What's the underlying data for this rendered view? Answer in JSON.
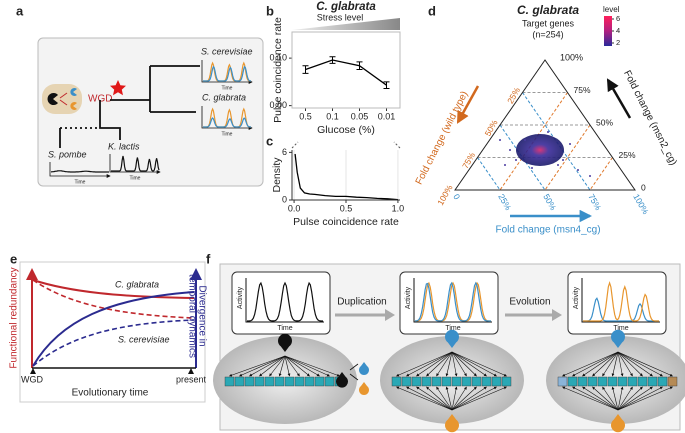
{
  "panel_labels": [
    "a",
    "b",
    "c",
    "d",
    "e",
    "f"
  ],
  "tree": {
    "wgd": "WGD",
    "species": [
      "S. cerevisiae",
      "C. glabrata",
      "K. lactis",
      "S. pombe"
    ],
    "time_label": "Time"
  },
  "chart_data": [
    {
      "type": "line",
      "title": "C. glabrata",
      "subtitle": "Stress level",
      "categories": [
        "0.5",
        "0.1",
        "0.05",
        "0.01"
      ],
      "values": [
        0.076,
        0.096,
        0.084,
        0.043
      ],
      "errors": [
        0.008,
        0.007,
        0.008,
        0.007
      ],
      "color": "#000000",
      "ylim": [
        -0.005,
        0.155
      ],
      "yticks": [
        {
          "value": 0,
          "label": "0.00"
        },
        {
          "value": 0.1,
          "label": "0.10"
        }
      ],
      "xlabel": "Glucose (%)",
      "ylabel": "Pulse coincidence rate"
    },
    {
      "type": "line",
      "x": [
        0.01,
        0.03,
        0.06,
        0.1,
        0.15,
        0.2,
        0.3,
        0.4,
        0.5,
        0.6,
        0.7,
        0.8,
        0.9,
        1.0
      ],
      "values": [
        5.8,
        3.5,
        1.5,
        0.9,
        0.75,
        0.7,
        0.55,
        0.45,
        0.45,
        0.35,
        0.3,
        0.2,
        0.15,
        0.05
      ],
      "color": "#000000",
      "xlim": [
        -0.02,
        1.02
      ],
      "xticks": [
        {
          "value": 0,
          "label": "0.0"
        },
        {
          "value": 0.5,
          "label": "0.5"
        },
        {
          "value": 1,
          "label": "1.0"
        }
      ],
      "ylim": [
        0,
        6.3
      ],
      "yticks": [
        0,
        6
      ],
      "grid": true,
      "xlabel": "Pulse coincidence rate",
      "ylabel": "Density"
    }
  ],
  "ternary": {
    "title": "C. glabrata",
    "subtitle": "Target genes",
    "n": "(n=254)",
    "legend_title": "level",
    "legend_ticks": [
      6,
      4,
      2
    ],
    "colorbar_lim": [
      1.5,
      6.5
    ],
    "top_label": "100%",
    "right_ticks": [
      "75%",
      "50%",
      "25%",
      "0"
    ],
    "left_ticks": [
      "25%",
      "50%",
      "75%",
      "100%"
    ],
    "bottom_ticks": [
      "0",
      "25%",
      "50%",
      "75%",
      "100%"
    ],
    "axis_msn2": "Fold change (msn2_cg)",
    "axis_wt": "Fold change (wild type)",
    "axis_msn4": "Fold change (msn4_cg)"
  },
  "e": {
    "left_axis": "Functional redundancy",
    "right_axis": [
      "Divergence in",
      "temporal dynamics"
    ],
    "c_glabrata": "C. glabrata",
    "s_cerevisiae": "S. cerevisiae",
    "wgd": "WGD",
    "present": "present",
    "xlabel": "Evolutionary time"
  },
  "f": {
    "activity": "Activity",
    "time": "Time",
    "duplication": "Duplication",
    "evolution": "Evolution"
  }
}
